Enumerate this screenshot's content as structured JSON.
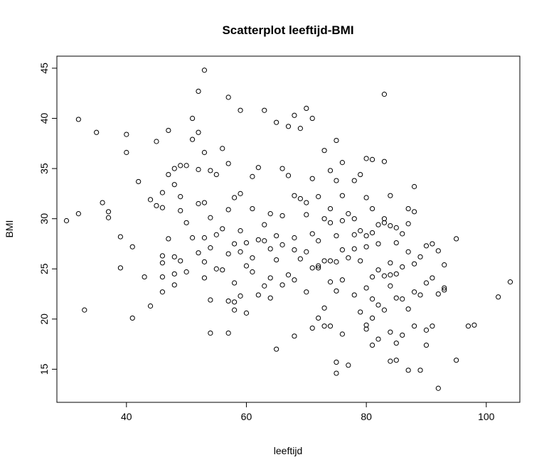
{
  "chart_data": {
    "type": "scatter",
    "title": "Scatterplot leeftijd-BMI",
    "xlabel": "leeftijd",
    "ylabel": "BMI",
    "xlim": [
      28.4,
      105.6
    ],
    "ylim": [
      11.7,
      46.2
    ],
    "xticks": [
      "40",
      "60",
      "80",
      "100"
    ],
    "yticks": [
      "15",
      "20",
      "25",
      "30",
      "35",
      "40",
      "45"
    ],
    "grid": false,
    "marker": "open-circle",
    "color": "#000000",
    "x": [
      30,
      32,
      32,
      33,
      35,
      36,
      37,
      37,
      39,
      39,
      40,
      40,
      41,
      41,
      42,
      43,
      44,
      44,
      45,
      45,
      46,
      46,
      46,
      46,
      46,
      46,
      47,
      47,
      47,
      48,
      48,
      48,
      48,
      48,
      49,
      49,
      49,
      50,
      50,
      50,
      51,
      51,
      51,
      52,
      52,
      52,
      52,
      52,
      53,
      53,
      53,
      53,
      53,
      54,
      54,
      54,
      54,
      54,
      55,
      55,
      56,
      56,
      56,
      57,
      57,
      57,
      57,
      57,
      58,
      58,
      58,
      58,
      58,
      59,
      59,
      59,
      59,
      60,
      60,
      60,
      61,
      61,
      61,
      62,
      62,
      62,
      63,
      63,
      63,
      64,
      64,
      64,
      65,
      65,
      65,
      65,
      66,
      66,
      66,
      67,
      67,
      67,
      68,
      68,
      68,
      68,
      68,
      69,
      69,
      69,
      70,
      70,
      70,
      70,
      71,
      71,
      71,
      71,
      71,
      72,
      72,
      72,
      72,
      73,
      73,
      73,
      73,
      73,
      74,
      74,
      74,
      74,
      74,
      75,
      75,
      75,
      75,
      75,
      75,
      75,
      76,
      76,
      76,
      76,
      76,
      77,
      77,
      77,
      78,
      78,
      78,
      78,
      79,
      79,
      79,
      79,
      80,
      80,
      80,
      80,
      80,
      80,
      80,
      81,
      81,
      81,
      81,
      81,
      81,
      82,
      82,
      82,
      82,
      82,
      83,
      83,
      83,
      83,
      83,
      84,
      84,
      84,
      84,
      84,
      84,
      85,
      85,
      85,
      85,
      85,
      85,
      86,
      86,
      86,
      86,
      87,
      87,
      87,
      87,
      88,
      88,
      88,
      88,
      88,
      89,
      89,
      89,
      90,
      90,
      90,
      90,
      91,
      91,
      91,
      92,
      92,
      93,
      93,
      93,
      95,
      95,
      97,
      98,
      102,
      104,
      57,
      76,
      70,
      72,
      83,
      66,
      61,
      49,
      53,
      78,
      63,
      84,
      87,
      74,
      92,
      64,
      68,
      81,
      59,
      55
    ],
    "y": [
      29.8,
      39.9,
      30.5,
      20.9,
      38.6,
      31.6,
      30.7,
      30.1,
      28.2,
      25.1,
      38.4,
      36.6,
      27.2,
      20.1,
      33.7,
      24.2,
      31.9,
      21.3,
      37.7,
      31.3,
      32.6,
      31.1,
      26.3,
      25.6,
      24.2,
      22.7,
      38.8,
      34.4,
      28.0,
      35.0,
      33.4,
      26.2,
      24.5,
      23.4,
      35.3,
      32.2,
      25.8,
      35.3,
      29.6,
      24.7,
      40.0,
      37.9,
      28.1,
      42.7,
      38.6,
      34.9,
      31.5,
      26.6,
      44.8,
      36.6,
      31.6,
      28.1,
      24.1,
      34.8,
      30.1,
      27.1,
      21.9,
      18.6,
      34.4,
      25.0,
      37.0,
      29.0,
      24.9,
      42.1,
      35.5,
      30.9,
      21.8,
      18.6,
      32.1,
      27.5,
      23.6,
      21.7,
      20.9,
      40.8,
      32.5,
      28.8,
      22.3,
      27.6,
      25.3,
      20.6,
      31.0,
      26.1,
      24.7,
      35.1,
      27.9,
      22.4,
      40.8,
      29.4,
      23.3,
      30.5,
      27.0,
      22.1,
      39.6,
      28.3,
      25.9,
      17.0,
      35.0,
      30.3,
      23.4,
      39.2,
      34.3,
      24.4,
      40.3,
      32.3,
      28.1,
      23.9,
      18.3,
      39.0,
      32.0,
      26.0,
      41.0,
      30.4,
      26.7,
      22.7,
      40.0,
      34.0,
      28.5,
      25.1,
      19.1,
      32.2,
      27.8,
      25.1,
      20.1,
      36.8,
      30.0,
      25.8,
      21.1,
      19.3,
      34.8,
      31.0,
      25.8,
      23.7,
      19.3,
      37.8,
      33.8,
      28.3,
      25.7,
      22.8,
      15.7,
      14.6,
      35.6,
      32.3,
      26.9,
      23.9,
      18.5,
      30.5,
      26.1,
      15.4,
      33.8,
      30.0,
      27.0,
      22.4,
      34.4,
      28.8,
      25.8,
      20.7,
      36.0,
      32.1,
      28.3,
      27.2,
      23.1,
      19.4,
      19.0,
      35.9,
      31.0,
      28.6,
      24.2,
      20.1,
      17.4,
      29.4,
      27.5,
      24.9,
      21.4,
      18.0,
      42.4,
      35.7,
      29.6,
      24.3,
      20.9,
      32.3,
      29.3,
      25.6,
      23.3,
      18.7,
      15.8,
      29.1,
      27.6,
      24.5,
      22.1,
      17.6,
      15.9,
      28.5,
      25.2,
      22.0,
      18.4,
      29.5,
      26.7,
      21.0,
      14.9,
      33.2,
      30.7,
      25.5,
      22.7,
      19.3,
      26.2,
      22.4,
      14.9,
      27.3,
      23.6,
      18.9,
      17.4,
      27.5,
      24.1,
      19.3,
      26.8,
      13.1,
      25.4,
      23.1,
      22.9,
      28.0,
      15.9,
      19.3,
      19.4,
      22.2,
      23.7,
      26.5,
      29.8,
      31.6,
      25.3,
      30.0,
      27.4,
      34.2,
      30.8,
      25.7,
      28.4,
      27.8,
      24.4,
      31.0,
      29.6,
      22.5,
      24.1,
      26.9,
      22.0,
      26.7,
      28.4
    ]
  }
}
